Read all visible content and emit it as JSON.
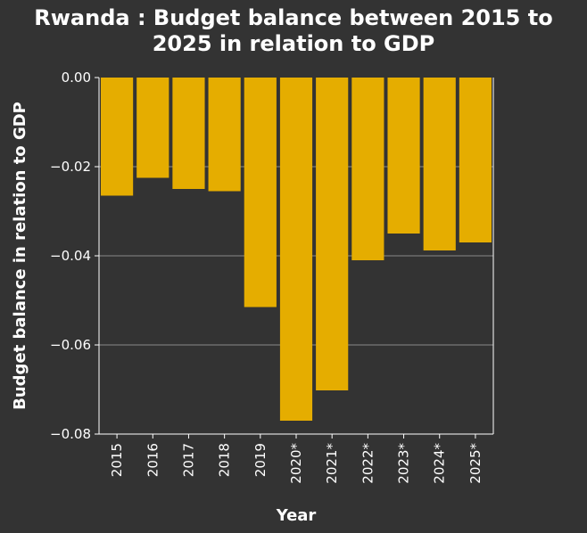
{
  "chart_data": {
    "type": "bar",
    "title_lines": [
      "Rwanda : Budget balance between 2015 to",
      "2025 in relation to GDP"
    ],
    "xlabel": "Year",
    "ylabel": "Budget balance in relation to GDP",
    "categories": [
      "2015",
      "2016",
      "2017",
      "2018",
      "2019",
      "2020*",
      "2021*",
      "2022*",
      "2023*",
      "2024*",
      "2025*"
    ],
    "values": [
      -0.0265,
      -0.0225,
      -0.025,
      -0.0255,
      -0.0515,
      -0.077,
      -0.0702,
      -0.041,
      -0.035,
      -0.0388,
      -0.037
    ],
    "ylim": [
      -0.08,
      0.0
    ],
    "yticks": [
      0.0,
      -0.02,
      -0.04,
      -0.06,
      -0.08
    ],
    "ytick_labels": [
      "0.00",
      "−0.02",
      "−0.04",
      "−0.06",
      "−0.08"
    ],
    "grid": true,
    "colors": {
      "bar": "#e5ad00",
      "background": "#333333",
      "grid": "#8a8a8a",
      "text": "#ffffff"
    }
  }
}
